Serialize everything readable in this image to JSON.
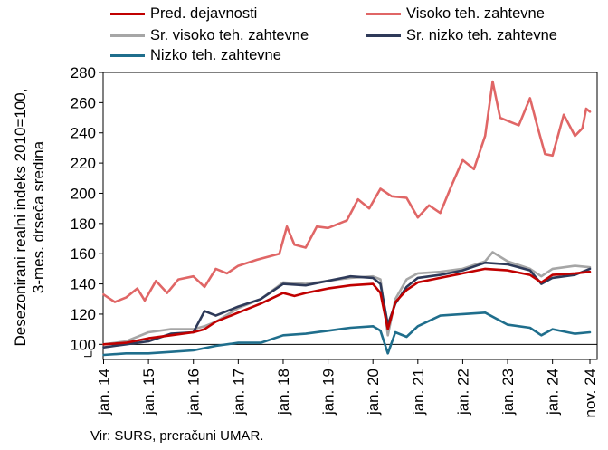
{
  "chart_data": {
    "type": "line",
    "ylabel": "Desezonirani realni indeks 2010=100, 3-mes. drseča sredina",
    "ylabel_lines": [
      "Desezonirani realni indeks 2010=100,",
      "3-mes. drseča sredina"
    ],
    "ylim": [
      90,
      280
    ],
    "yticks": [
      100,
      120,
      140,
      160,
      180,
      200,
      220,
      240,
      260,
      280
    ],
    "xlim": [
      "2014-01",
      "2024-11"
    ],
    "xticks": [
      "jan. 14",
      "jan. 15",
      "jan. 16",
      "jan. 17",
      "jan. 18",
      "jan. 19",
      "jan. 20",
      "jan. 21",
      "jan. 22",
      "jan. 23",
      "jan. 24",
      "nov. 24"
    ],
    "grid": false,
    "legend_position": "top",
    "reference_line": 100,
    "axis_break_marks": true,
    "source": "Vir: SURS, preračuni UMAR.",
    "series": [
      {
        "name": "Pred. dejavnosti",
        "color": "#c00000",
        "points": [
          [
            "2014-01",
            100
          ],
          [
            "2014-07",
            101
          ],
          [
            "2015-01",
            104
          ],
          [
            "2015-07",
            106
          ],
          [
            "2016-01",
            108
          ],
          [
            "2016-04",
            110
          ],
          [
            "2016-07",
            115
          ],
          [
            "2017-01",
            121
          ],
          [
            "2017-07",
            127
          ],
          [
            "2018-01",
            134
          ],
          [
            "2018-04",
            132
          ],
          [
            "2018-07",
            134
          ],
          [
            "2019-01",
            137
          ],
          [
            "2019-07",
            139
          ],
          [
            "2020-01",
            140
          ],
          [
            "2020-03",
            134
          ],
          [
            "2020-05",
            110
          ],
          [
            "2020-07",
            128
          ],
          [
            "2020-10",
            136
          ],
          [
            "2021-01",
            141
          ],
          [
            "2021-07",
            144
          ],
          [
            "2022-01",
            147
          ],
          [
            "2022-07",
            150
          ],
          [
            "2023-01",
            149
          ],
          [
            "2023-07",
            146
          ],
          [
            "2023-10",
            141
          ],
          [
            "2024-01",
            146
          ],
          [
            "2024-07",
            147
          ],
          [
            "2024-11",
            148
          ]
        ]
      },
      {
        "name": "Visoko teh. zahtevne",
        "color": "#e06666",
        "points": [
          [
            "2014-01",
            133
          ],
          [
            "2014-04",
            128
          ],
          [
            "2014-07",
            131
          ],
          [
            "2014-10",
            137
          ],
          [
            "2014-12",
            129
          ],
          [
            "2015-03",
            142
          ],
          [
            "2015-06",
            134
          ],
          [
            "2015-09",
            143
          ],
          [
            "2016-01",
            145
          ],
          [
            "2016-04",
            138
          ],
          [
            "2016-07",
            150
          ],
          [
            "2016-10",
            147
          ],
          [
            "2017-01",
            152
          ],
          [
            "2017-06",
            156
          ],
          [
            "2017-12",
            160
          ],
          [
            "2018-02",
            178
          ],
          [
            "2018-04",
            166
          ],
          [
            "2018-07",
            164
          ],
          [
            "2018-10",
            178
          ],
          [
            "2019-01",
            177
          ],
          [
            "2019-06",
            182
          ],
          [
            "2019-09",
            196
          ],
          [
            "2019-12",
            190
          ],
          [
            "2020-03",
            203
          ],
          [
            "2020-06",
            198
          ],
          [
            "2020-10",
            197
          ],
          [
            "2021-01",
            184
          ],
          [
            "2021-04",
            192
          ],
          [
            "2021-07",
            187
          ],
          [
            "2021-10",
            205
          ],
          [
            "2022-01",
            222
          ],
          [
            "2022-04",
            216
          ],
          [
            "2022-07",
            238
          ],
          [
            "2022-09",
            274
          ],
          [
            "2022-11",
            250
          ],
          [
            "2023-01",
            248
          ],
          [
            "2023-04",
            245
          ],
          [
            "2023-07",
            263
          ],
          [
            "2023-09",
            244
          ],
          [
            "2023-11",
            226
          ],
          [
            "2024-01",
            225
          ],
          [
            "2024-04",
            252
          ],
          [
            "2024-07",
            238
          ],
          [
            "2024-09",
            243
          ],
          [
            "2024-10",
            256
          ],
          [
            "2024-11",
            254
          ]
        ]
      },
      {
        "name": "Sr. visoko teh. zahtevne",
        "color": "#a6a6a6",
        "points": [
          [
            "2014-01",
            100
          ],
          [
            "2014-07",
            102
          ],
          [
            "2015-01",
            108
          ],
          [
            "2015-07",
            110
          ],
          [
            "2016-01",
            110
          ],
          [
            "2016-04",
            112
          ],
          [
            "2016-07",
            115
          ],
          [
            "2017-01",
            124
          ],
          [
            "2017-07",
            130
          ],
          [
            "2018-01",
            141
          ],
          [
            "2018-07",
            140
          ],
          [
            "2019-01",
            142
          ],
          [
            "2019-07",
            144
          ],
          [
            "2020-01",
            145
          ],
          [
            "2020-03",
            143
          ],
          [
            "2020-05",
            106
          ],
          [
            "2020-07",
            130
          ],
          [
            "2020-10",
            143
          ],
          [
            "2021-01",
            147
          ],
          [
            "2021-07",
            148
          ],
          [
            "2022-01",
            150
          ],
          [
            "2022-07",
            155
          ],
          [
            "2022-09",
            161
          ],
          [
            "2023-01",
            155
          ],
          [
            "2023-07",
            150
          ],
          [
            "2023-10",
            145
          ],
          [
            "2024-01",
            150
          ],
          [
            "2024-07",
            152
          ],
          [
            "2024-11",
            151
          ]
        ]
      },
      {
        "name": "Sr. nizko teh. zahtevne",
        "color": "#2e3a59",
        "points": [
          [
            "2014-01",
            98
          ],
          [
            "2014-07",
            100
          ],
          [
            "2015-01",
            102
          ],
          [
            "2015-07",
            107
          ],
          [
            "2016-01",
            108
          ],
          [
            "2016-04",
            122
          ],
          [
            "2016-07",
            119
          ],
          [
            "2017-01",
            125
          ],
          [
            "2017-07",
            130
          ],
          [
            "2018-01",
            140
          ],
          [
            "2018-07",
            139
          ],
          [
            "2019-01",
            142
          ],
          [
            "2019-07",
            145
          ],
          [
            "2020-01",
            144
          ],
          [
            "2020-03",
            140
          ],
          [
            "2020-05",
            113
          ],
          [
            "2020-07",
            127
          ],
          [
            "2020-10",
            138
          ],
          [
            "2021-01",
            144
          ],
          [
            "2021-07",
            146
          ],
          [
            "2022-01",
            149
          ],
          [
            "2022-07",
            154
          ],
          [
            "2023-01",
            153
          ],
          [
            "2023-07",
            149
          ],
          [
            "2023-10",
            140
          ],
          [
            "2024-01",
            144
          ],
          [
            "2024-07",
            146
          ],
          [
            "2024-11",
            150
          ]
        ]
      },
      {
        "name": "Nizko teh. zahtevne",
        "color": "#1f6e8c",
        "points": [
          [
            "2014-01",
            93
          ],
          [
            "2014-07",
            94
          ],
          [
            "2015-01",
            94
          ],
          [
            "2015-07",
            95
          ],
          [
            "2016-01",
            96
          ],
          [
            "2016-07",
            99
          ],
          [
            "2017-01",
            101
          ],
          [
            "2017-07",
            101
          ],
          [
            "2018-01",
            106
          ],
          [
            "2018-07",
            107
          ],
          [
            "2019-01",
            109
          ],
          [
            "2019-07",
            111
          ],
          [
            "2020-01",
            112
          ],
          [
            "2020-03",
            109
          ],
          [
            "2020-05",
            94
          ],
          [
            "2020-07",
            108
          ],
          [
            "2020-10",
            105
          ],
          [
            "2021-01",
            112
          ],
          [
            "2021-07",
            119
          ],
          [
            "2022-01",
            120
          ],
          [
            "2022-07",
            121
          ],
          [
            "2023-01",
            113
          ],
          [
            "2023-07",
            111
          ],
          [
            "2023-10",
            106
          ],
          [
            "2024-01",
            110
          ],
          [
            "2024-07",
            107
          ],
          [
            "2024-11",
            108
          ]
        ]
      }
    ]
  }
}
